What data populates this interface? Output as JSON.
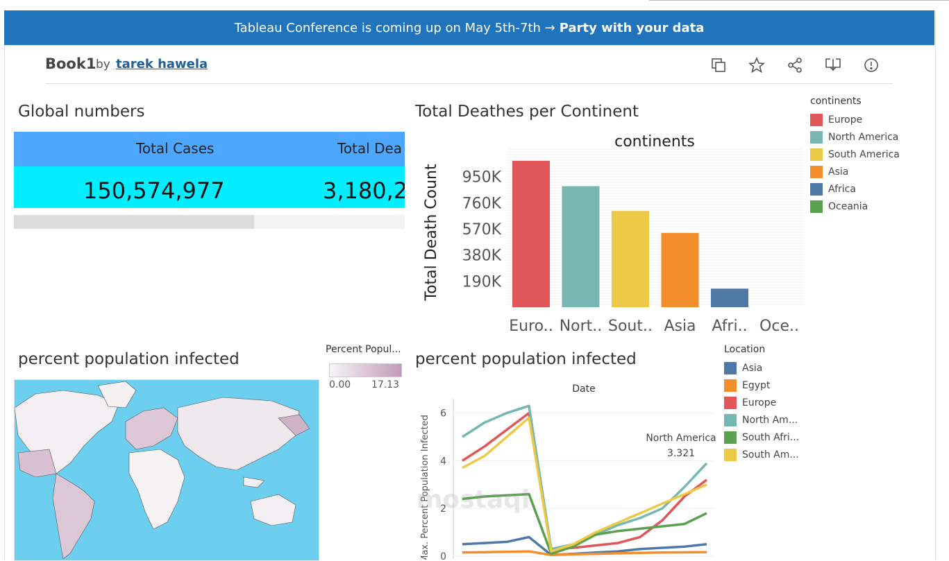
{
  "banner": {
    "text": "Tableau Conference is coming up on May 5th-7th →",
    "link": "Party with your data"
  },
  "header": {
    "title": "Book1",
    "by": "by",
    "author": "tarek hawela"
  },
  "toolbar": [
    "copy-icon",
    "star-icon",
    "share-icon",
    "download-icon",
    "info-icon"
  ],
  "global": {
    "title": "Global numbers",
    "col1": "Total Cases",
    "col2": "Total Dea",
    "val1": "150,574,977",
    "val2": "3,180,2"
  },
  "colors": {
    "Europe": "#e15759",
    "North America": "#76b7b2",
    "South America": "#edc948",
    "Asia": "#f28e2b",
    "Africa": "#4e79a7",
    "Oceania": "#59a14f"
  },
  "deaths_chart": {
    "title": "Total Deathes per Continent",
    "chart_data": {
      "type": "bar",
      "title": "continents",
      "ylabel": "Total Death Count",
      "categories": [
        "Euro..",
        "Nort..",
        "Sout..",
        "Asia",
        "Afri..",
        "Oce.."
      ],
      "values": [
        1065000,
        880000,
        700000,
        540000,
        135000,
        0
      ],
      "yticks": [
        "190K",
        "380K",
        "570K",
        "760K",
        "950K"
      ],
      "ytick_values": [
        190000,
        380000,
        570000,
        760000,
        950000
      ],
      "ylim": [
        0,
        1150000
      ]
    },
    "legend_title": "continents",
    "legend": [
      "Europe",
      "North America",
      "South America",
      "Asia",
      "Africa",
      "Oceania"
    ]
  },
  "map": {
    "title": "percent population infected",
    "legend_title": "Percent Popul...",
    "min": "0.00",
    "max": "17.13"
  },
  "line_chart": {
    "title": "percent population infected",
    "legend_title": "Location",
    "legend": [
      {
        "label": "Asia",
        "color": "#4e79a7"
      },
      {
        "label": "Egypt",
        "color": "#f28e2b"
      },
      {
        "label": "Europe",
        "color": "#e15759"
      },
      {
        "label": "North Am...",
        "color": "#76b7b2"
      },
      {
        "label": "South Afri...",
        "color": "#59a14f"
      },
      {
        "label": "South Am...",
        "color": "#edc948"
      }
    ],
    "tooltip": {
      "label": "North America",
      "value": "3.321"
    },
    "chart_data": {
      "type": "line",
      "title": "Date",
      "ylabel": "Max. Percent Population Infected",
      "yticks": [
        "0",
        "2",
        "4",
        "6"
      ],
      "ylim": [
        0,
        6.6
      ],
      "x": [
        1,
        2,
        3,
        4,
        5,
        6,
        7,
        8,
        9,
        10,
        11,
        12
      ],
      "series": [
        {
          "name": "Asia",
          "color": "#4e79a7",
          "values": [
            0.5,
            0.55,
            0.6,
            0.8,
            0.05,
            0.1,
            0.15,
            0.2,
            0.3,
            0.35,
            0.4,
            0.5
          ]
        },
        {
          "name": "Egypt",
          "color": "#f28e2b",
          "values": [
            0.15,
            0.17,
            0.18,
            0.2,
            0.05,
            0.08,
            0.1,
            0.12,
            0.14,
            0.15,
            0.16,
            0.17
          ]
        },
        {
          "name": "Europe",
          "color": "#e15759",
          "values": [
            4.0,
            4.6,
            5.3,
            6.0,
            0.3,
            0.35,
            0.45,
            0.55,
            0.8,
            1.5,
            2.5,
            3.2
          ]
        },
        {
          "name": "North America",
          "color": "#76b7b2",
          "values": [
            5.0,
            5.6,
            6.0,
            6.3,
            0.3,
            0.5,
            0.9,
            1.3,
            1.6,
            2.0,
            2.9,
            3.9
          ]
        },
        {
          "name": "South Africa",
          "color": "#59a14f",
          "values": [
            2.4,
            2.5,
            2.55,
            2.6,
            0.1,
            0.4,
            0.9,
            1.05,
            1.15,
            1.25,
            1.35,
            1.8
          ]
        },
        {
          "name": "South America",
          "color": "#edc948",
          "values": [
            3.7,
            4.2,
            5.0,
            5.8,
            0.2,
            0.5,
            1.0,
            1.4,
            1.8,
            2.2,
            2.6,
            3.0
          ]
        }
      ]
    }
  }
}
